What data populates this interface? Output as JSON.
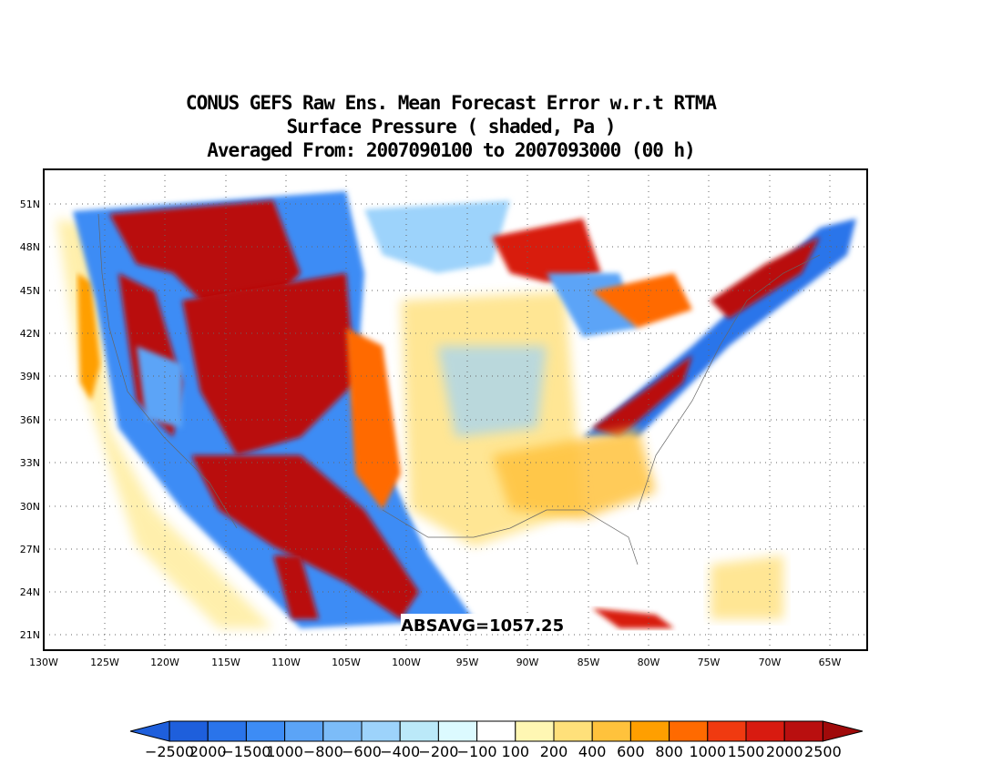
{
  "title": {
    "line1": "CONUS GEFS Raw Ens. Mean Forecast Error w.r.t RTMA",
    "line2": "Surface Pressure ( shaded, Pa )",
    "line3": "Averaged From: 2007090100 to 2007093000 (00 h)"
  },
  "annotation": "ABSAVG=1057.25",
  "chart_data": {
    "type": "heatmap",
    "map_region": "CONUS",
    "lat_ticks": [
      "51N",
      "48N",
      "45N",
      "42N",
      "39N",
      "36N",
      "33N",
      "30N",
      "27N",
      "24N",
      "21N"
    ],
    "lon_ticks": [
      "130W",
      "125W",
      "120W",
      "115W",
      "110W",
      "105W",
      "100W",
      "95W",
      "90W",
      "85W",
      "80W",
      "75W",
      "70W",
      "65W"
    ],
    "lat_range": [
      20,
      52
    ],
    "lon_range": [
      -130,
      -62
    ],
    "grid": true,
    "colorbar": {
      "labels": [
        "−2500",
        "2000",
        "−1500",
        "1000",
        "−800",
        "−600",
        "−400",
        "−200",
        "−100",
        "100",
        "200",
        "400",
        "600",
        "800",
        "1000",
        "1500",
        "2000",
        "2500"
      ],
      "colors": [
        "#1e5fdc",
        "#2a74ea",
        "#3d8cf5",
        "#5ba4f7",
        "#7cbcf8",
        "#9dd3fb",
        "#bbe9f9",
        "#dcfaff",
        "#ffffff",
        "#fff7b3",
        "#ffe07a",
        "#ffc23c",
        "#ff9f00",
        "#ff6a00",
        "#f03a10",
        "#d81b10",
        "#b90f0f"
      ],
      "extend_low": "#1e5fdc",
      "extend_high": "#a00a0a"
    }
  }
}
